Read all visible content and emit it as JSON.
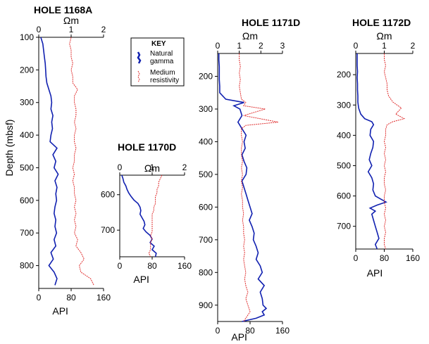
{
  "chart_data": [
    {
      "type": "line",
      "title": "HOLE 1168A",
      "ylabel": "Depth (mbsf)",
      "xlabel": "API",
      "xlabel_top": "Ωm",
      "depth_range": [
        100,
        870
      ],
      "depth_ticks": [
        100,
        200,
        300,
        400,
        500,
        600,
        700,
        800
      ],
      "api_range": [
        0,
        160
      ],
      "api_ticks": [
        0,
        80,
        160
      ],
      "res_range": [
        0,
        2
      ],
      "res_ticks": [
        0,
        1,
        2
      ],
      "series": [
        {
          "name": "Natural gamma",
          "color": "#1020b0",
          "depth": [
            100,
            120,
            140,
            160,
            180,
            200,
            220,
            240,
            260,
            280,
            300,
            320,
            340,
            360,
            380,
            400,
            420,
            440,
            460,
            480,
            500,
            520,
            540,
            560,
            580,
            600,
            620,
            640,
            660,
            680,
            700,
            720,
            740,
            760,
            780,
            800,
            820,
            840,
            860
          ],
          "values": [
            5,
            10,
            12,
            14,
            16,
            17,
            18,
            20,
            25,
            30,
            32,
            30,
            35,
            32,
            34,
            30,
            28,
            45,
            35,
            42,
            38,
            48,
            40,
            45,
            42,
            44,
            40,
            38,
            42,
            40,
            44,
            38,
            42,
            30,
            36,
            25,
            38,
            45,
            40
          ]
        },
        {
          "name": "Medium resistivity",
          "color": "#e03030",
          "depth": [
            100,
            120,
            140,
            160,
            180,
            200,
            220,
            240,
            260,
            280,
            300,
            320,
            340,
            360,
            380,
            400,
            420,
            440,
            460,
            480,
            500,
            520,
            540,
            560,
            580,
            600,
            620,
            640,
            660,
            680,
            700,
            720,
            740,
            760,
            780,
            800,
            820,
            840,
            860
          ],
          "values": [
            1.0,
            0.95,
            1.0,
            1.0,
            1.05,
            1.0,
            1.05,
            1.05,
            1.2,
            1.1,
            1.1,
            1.15,
            1.15,
            1.1,
            1.15,
            1.1,
            1.1,
            1.15,
            1.1,
            1.1,
            1.05,
            1.1,
            1.05,
            1.1,
            1.1,
            1.15,
            1.1,
            1.15,
            1.1,
            1.15,
            1.1,
            1.2,
            1.15,
            1.3,
            1.4,
            1.25,
            1.3,
            1.6,
            1.7
          ]
        }
      ]
    },
    {
      "type": "line",
      "title": "HOLE 1170D",
      "xlabel": "API",
      "xlabel_top": "Ωm",
      "depth_range": [
        545,
        775
      ],
      "depth_ticks": [
        600,
        700
      ],
      "api_range": [
        0,
        160
      ],
      "api_ticks": [
        0,
        80,
        160
      ],
      "res_range": [
        0,
        2
      ],
      "res_ticks": [
        0,
        1,
        2
      ],
      "series": [
        {
          "name": "Natural gamma",
          "color": "#1020b0",
          "depth": [
            545,
            555,
            565,
            575,
            585,
            595,
            605,
            615,
            625,
            635,
            645,
            655,
            665,
            675,
            685,
            695,
            705,
            715,
            725,
            735,
            745,
            755,
            765,
            775
          ],
          "values": [
            5,
            8,
            10,
            15,
            18,
            22,
            28,
            35,
            45,
            50,
            52,
            50,
            55,
            60,
            62,
            58,
            65,
            75,
            80,
            75,
            85,
            80,
            90,
            88
          ]
        },
        {
          "name": "Medium resistivity",
          "color": "#e03030",
          "depth": [
            545,
            555,
            565,
            575,
            585,
            595,
            605,
            615,
            625,
            635,
            645,
            655,
            665,
            675,
            685,
            695,
            705,
            715,
            725,
            735,
            745,
            755,
            765,
            775
          ],
          "values": [
            1.3,
            1.25,
            1.2,
            1.2,
            1.15,
            1.15,
            1.1,
            1.1,
            1.1,
            1.05,
            1.05,
            1.0,
            1.0,
            1.0,
            1.0,
            1.0,
            1.0,
            0.95,
            1.0,
            0.95,
            0.95,
            0.95,
            0.9,
            0.95
          ]
        }
      ]
    },
    {
      "type": "line",
      "title": "HOLE 1171D",
      "xlabel": "API",
      "xlabel_top": "Ωm",
      "depth_range": [
        130,
        950
      ],
      "depth_ticks": [
        200,
        300,
        400,
        500,
        600,
        700,
        800,
        900
      ],
      "api_range": [
        0,
        160
      ],
      "api_ticks": [
        0,
        80,
        160
      ],
      "res_range": [
        0,
        3
      ],
      "res_ticks": [
        0,
        1,
        2,
        3
      ],
      "series": [
        {
          "name": "Natural gamma",
          "color": "#1020b0",
          "depth": [
            130,
            150,
            170,
            190,
            210,
            230,
            250,
            270,
            280,
            290,
            300,
            320,
            340,
            360,
            380,
            400,
            420,
            440,
            460,
            480,
            500,
            520,
            540,
            560,
            580,
            600,
            620,
            640,
            660,
            680,
            700,
            720,
            740,
            760,
            780,
            800,
            820,
            840,
            860,
            880,
            900,
            910,
            920,
            930,
            940,
            950
          ],
          "values": [
            3,
            3,
            4,
            4,
            4,
            5,
            5,
            20,
            65,
            40,
            55,
            60,
            50,
            60,
            70,
            65,
            68,
            60,
            65,
            72,
            70,
            60,
            65,
            70,
            75,
            80,
            85,
            78,
            85,
            90,
            88,
            95,
            100,
            95,
            105,
            110,
            100,
            115,
            105,
            110,
            112,
            120,
            110,
            115,
            95,
            60
          ]
        },
        {
          "name": "Medium resistivity",
          "color": "#e03030",
          "depth": [
            130,
            150,
            170,
            190,
            210,
            230,
            250,
            270,
            280,
            290,
            300,
            320,
            340,
            350,
            360,
            380,
            400,
            420,
            440,
            460,
            480,
            500,
            520,
            540,
            560,
            580,
            600,
            620,
            640,
            660,
            680,
            700,
            720,
            740,
            760,
            780,
            800,
            820,
            840,
            860,
            880,
            900,
            920,
            940,
            950
          ],
          "values": [
            1.0,
            1.0,
            1.05,
            1.0,
            1.05,
            1.0,
            1.05,
            1.1,
            1.3,
            1.2,
            2.2,
            1.2,
            2.8,
            1.3,
            1.1,
            1.1,
            1.15,
            1.1,
            1.1,
            1.15,
            1.1,
            1.15,
            1.1,
            1.15,
            1.1,
            1.15,
            1.15,
            1.2,
            1.15,
            1.2,
            1.2,
            1.25,
            1.2,
            1.25,
            1.2,
            1.25,
            1.3,
            1.25,
            1.3,
            1.4,
            1.3,
            1.4,
            1.5,
            1.3,
            1.2
          ]
        }
      ]
    },
    {
      "type": "line",
      "title": "HOLE 1172D",
      "xlabel": "API",
      "xlabel_top": "Ωm",
      "depth_range": [
        130,
        775
      ],
      "depth_ticks": [
        200,
        300,
        400,
        500,
        600,
        700
      ],
      "api_range": [
        0,
        160
      ],
      "api_ticks": [
        0,
        80,
        160
      ],
      "res_range": [
        0,
        2
      ],
      "res_ticks": [
        0,
        1,
        2
      ],
      "series": [
        {
          "name": "Natural gamma",
          "color": "#1020b0",
          "depth": [
            130,
            150,
            170,
            190,
            210,
            230,
            250,
            270,
            290,
            310,
            330,
            345,
            355,
            365,
            380,
            400,
            420,
            440,
            460,
            480,
            500,
            520,
            540,
            560,
            580,
            600,
            610,
            620,
            630,
            640,
            650,
            660,
            680,
            700,
            720,
            740,
            760,
            775
          ],
          "values": [
            4,
            4,
            4,
            5,
            4,
            5,
            5,
            6,
            6,
            8,
            14,
            25,
            45,
            50,
            42,
            40,
            50,
            48,
            42,
            38,
            45,
            35,
            45,
            50,
            48,
            55,
            70,
            85,
            60,
            40,
            55,
            45,
            50,
            55,
            60,
            65,
            55,
            60
          ]
        },
        {
          "name": "Medium resistivity",
          "color": "#e03030",
          "depth": [
            130,
            150,
            170,
            190,
            210,
            230,
            250,
            270,
            290,
            310,
            330,
            345,
            355,
            365,
            380,
            400,
            420,
            440,
            460,
            480,
            500,
            520,
            540,
            560,
            580,
            600,
            620,
            640,
            660,
            680,
            700,
            720,
            740,
            760,
            775
          ],
          "values": [
            1.0,
            1.0,
            1.05,
            1.0,
            1.05,
            1.1,
            1.1,
            1.15,
            1.3,
            1.6,
            1.4,
            1.7,
            1.3,
            1.1,
            1.05,
            1.05,
            1.0,
            1.05,
            1.0,
            1.05,
            1.0,
            1.05,
            1.0,
            1.0,
            1.05,
            1.0,
            1.0,
            1.05,
            1.0,
            1.05,
            1.0,
            1.05,
            1.0,
            1.0,
            1.05
          ]
        }
      ]
    }
  ],
  "legend": {
    "title": "KEY",
    "placement": "top-center",
    "items": [
      {
        "label_lines": [
          "Natural",
          "gamma"
        ],
        "color": "#1020b0"
      },
      {
        "label_lines": [
          "Medium",
          "resistivity"
        ],
        "color": "#e03030"
      }
    ]
  }
}
